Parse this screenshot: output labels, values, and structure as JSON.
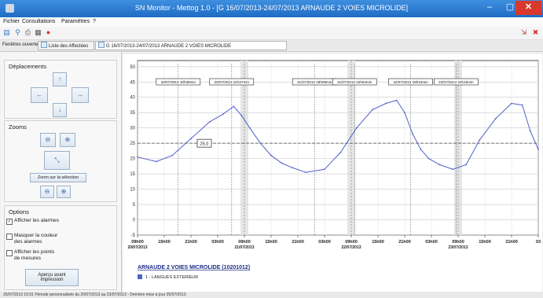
{
  "window": {
    "title": "SN Monitor - Mettog 1.0 - [G 16/07/2013-24/07/2013 ARNAUDE 2 VOIES MICROLIDE]",
    "min_label": "–",
    "max_label": "▢",
    "close_label": "✕"
  },
  "menu": [
    "Fichier",
    "Consultations",
    "Paramètres",
    "?"
  ],
  "tabs": {
    "label": "Fenêtres ouvertes :",
    "items": [
      "Liste des Affectées",
      "G 16/07/2013-24/07/2013 ARNAUDE 2 VOIES MICROLIDE"
    ]
  },
  "sidebar": {
    "moves_title": "Déplacements",
    "zoom_title": "Zooms",
    "zoom_selection": "Zoom sur la sélection",
    "options_title": "Options",
    "options": [
      {
        "label": "Afficher les alarmes",
        "checked": true
      },
      {
        "label": "Masquer la couleur des alarmes",
        "checked": false
      },
      {
        "label": "Afficher les points de mesures",
        "checked": false
      }
    ],
    "print_button": "Aperçu avant impression"
  },
  "chart_data": {
    "type": "line",
    "y_ticks": [
      "50",
      "45",
      "40",
      "35",
      "30",
      "25",
      "20",
      "15",
      "10",
      "5",
      "0",
      "-5"
    ],
    "ylim": [
      -5,
      52
    ],
    "x_ticks": [
      "09h00",
      "15h00",
      "21h00",
      "03h00",
      "09h00",
      "15h00",
      "21h00",
      "03h00",
      "09h00",
      "15h00",
      "21h00",
      "03h00",
      "09h00",
      "15h00",
      "21h00",
      "03"
    ],
    "x_dates": [
      "20/07/2013",
      "21/07/2013",
      "22/07/2013",
      "23/07/2013"
    ],
    "reference_value": 25,
    "reference_label": "25.0",
    "annotations": [
      "20/07/2013 10h38min",
      "20/07/2013 21h47min",
      "21/07/2013 18h09min",
      "21/07/2013 22h54min",
      "22/07/2013 18h15min",
      "22/07/2013 22h16min"
    ],
    "legend_title": "ARNAUDE 2 VOIES MICROLIDE (10201012)",
    "series": [
      {
        "name": "1 - LANGUES EXTERIEUR",
        "color": "#5060c8",
        "x": [
          0,
          0.7,
          1.3,
          2.0,
          2.7,
          3.2,
          3.6,
          3.9,
          4.2,
          4.6,
          5.0,
          5.4,
          5.8,
          6.3,
          7.0,
          7.6,
          8.2,
          8.8,
          9.3,
          9.7,
          10.0,
          10.3,
          10.6,
          10.9,
          11.3,
          11.8,
          12.3,
          12.8,
          13.4,
          14.0,
          14.4,
          14.7,
          15.0
        ],
        "y": [
          20.5,
          19.0,
          21.0,
          26.5,
          32.0,
          34.5,
          37.0,
          34.0,
          30.0,
          25.0,
          21.0,
          18.5,
          17.0,
          15.5,
          16.5,
          22.0,
          30.0,
          36.0,
          38.0,
          39.0,
          35.0,
          28.0,
          23.0,
          20.0,
          18.0,
          16.5,
          18.0,
          26.0,
          33.0,
          38.0,
          37.5,
          29.0,
          23.0
        ]
      }
    ]
  },
  "status": "25/07/2013 10:51 Période personnalisée du 20/07/2013 au 23/07/2013 - Dernière mise à jour 25/07/2013"
}
